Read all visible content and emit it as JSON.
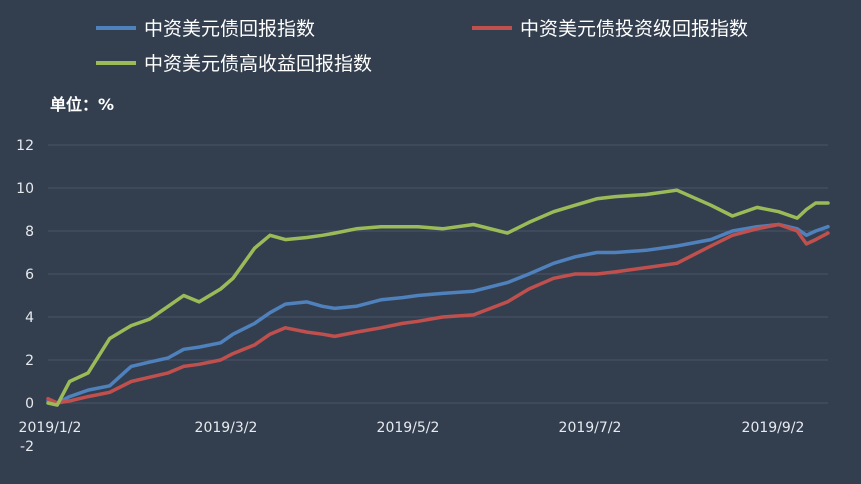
{
  "chart_data": {
    "type": "line",
    "unit_label": "单位：%",
    "y_ticks": [
      "12",
      "10",
      "8",
      "6",
      "4",
      "2",
      "0",
      "-2"
    ],
    "x_ticks": [
      "2019/1/2",
      "2019/3/2",
      "2019/5/2",
      "2019/7/2",
      "2019/9/2"
    ],
    "ylim": [
      -2,
      12
    ],
    "xlim": [
      "2019-01-02",
      "2019-09-12"
    ],
    "grid": true,
    "legend_position": "top",
    "series": [
      {
        "name": "中资美元债回报指数",
        "color": "#4f81bd",
        "x": [
          "2019-01-02",
          "2019-01-05",
          "2019-01-09",
          "2019-01-15",
          "2019-01-22",
          "2019-01-29",
          "2019-02-04",
          "2019-02-10",
          "2019-02-15",
          "2019-02-20",
          "2019-02-27",
          "2019-03-03",
          "2019-03-10",
          "2019-03-15",
          "2019-03-20",
          "2019-03-27",
          "2019-04-01",
          "2019-04-05",
          "2019-04-12",
          "2019-04-20",
          "2019-04-27",
          "2019-05-02",
          "2019-05-10",
          "2019-05-20",
          "2019-05-31",
          "2019-06-07",
          "2019-06-15",
          "2019-06-22",
          "2019-06-29",
          "2019-07-05",
          "2019-07-15",
          "2019-07-25",
          "2019-08-05",
          "2019-08-12",
          "2019-08-20",
          "2019-08-27",
          "2019-09-02",
          "2019-09-05",
          "2019-09-08",
          "2019-09-12"
        ],
        "values": [
          0.1,
          0.0,
          0.3,
          0.6,
          0.8,
          1.7,
          1.9,
          2.1,
          2.5,
          2.6,
          2.8,
          3.2,
          3.7,
          4.2,
          4.6,
          4.7,
          4.5,
          4.4,
          4.5,
          4.8,
          4.9,
          5.0,
          5.1,
          5.2,
          5.6,
          6.0,
          6.5,
          6.8,
          7.0,
          7.0,
          7.1,
          7.3,
          7.6,
          8.0,
          8.2,
          8.3,
          8.1,
          7.8,
          8.0,
          8.2
        ]
      },
      {
        "name": "中资美元债投资级回报指数",
        "color": "#c0504d",
        "x": [
          "2019-01-02",
          "2019-01-05",
          "2019-01-09",
          "2019-01-15",
          "2019-01-22",
          "2019-01-29",
          "2019-02-04",
          "2019-02-10",
          "2019-02-15",
          "2019-02-20",
          "2019-02-27",
          "2019-03-03",
          "2019-03-10",
          "2019-03-15",
          "2019-03-20",
          "2019-03-27",
          "2019-04-01",
          "2019-04-05",
          "2019-04-12",
          "2019-04-20",
          "2019-04-27",
          "2019-05-02",
          "2019-05-10",
          "2019-05-20",
          "2019-05-31",
          "2019-06-07",
          "2019-06-15",
          "2019-06-22",
          "2019-06-29",
          "2019-07-05",
          "2019-07-15",
          "2019-07-25",
          "2019-08-05",
          "2019-08-12",
          "2019-08-20",
          "2019-08-27",
          "2019-09-02",
          "2019-09-05",
          "2019-09-08",
          "2019-09-12"
        ],
        "values": [
          0.2,
          0.0,
          0.1,
          0.3,
          0.5,
          1.0,
          1.2,
          1.4,
          1.7,
          1.8,
          2.0,
          2.3,
          2.7,
          3.2,
          3.5,
          3.3,
          3.2,
          3.1,
          3.3,
          3.5,
          3.7,
          3.8,
          4.0,
          4.1,
          4.7,
          5.3,
          5.8,
          6.0,
          6.0,
          6.1,
          6.3,
          6.5,
          7.3,
          7.8,
          8.1,
          8.3,
          8.0,
          7.4,
          7.6,
          7.9
        ]
      },
      {
        "name": "中资美元债高收益回报指数",
        "color": "#9bbb59",
        "x": [
          "2019-01-02",
          "2019-01-05",
          "2019-01-09",
          "2019-01-15",
          "2019-01-22",
          "2019-01-29",
          "2019-02-04",
          "2019-02-10",
          "2019-02-15",
          "2019-02-20",
          "2019-02-27",
          "2019-03-03",
          "2019-03-10",
          "2019-03-15",
          "2019-03-20",
          "2019-03-27",
          "2019-04-01",
          "2019-04-05",
          "2019-04-12",
          "2019-04-20",
          "2019-04-27",
          "2019-05-02",
          "2019-05-10",
          "2019-05-20",
          "2019-05-31",
          "2019-06-07",
          "2019-06-15",
          "2019-06-22",
          "2019-06-29",
          "2019-07-05",
          "2019-07-15",
          "2019-07-25",
          "2019-08-05",
          "2019-08-12",
          "2019-08-20",
          "2019-08-27",
          "2019-09-02",
          "2019-09-05",
          "2019-09-08",
          "2019-09-12"
        ],
        "values": [
          0.0,
          -0.1,
          1.0,
          1.4,
          3.0,
          3.6,
          3.9,
          4.5,
          5.0,
          4.7,
          5.3,
          5.8,
          7.2,
          7.8,
          7.6,
          7.7,
          7.8,
          7.9,
          8.1,
          8.2,
          8.2,
          8.2,
          8.1,
          8.3,
          7.9,
          8.4,
          8.9,
          9.2,
          9.5,
          9.6,
          9.7,
          9.9,
          9.2,
          8.7,
          9.1,
          8.9,
          8.6,
          9.0,
          9.3,
          9.3
        ]
      }
    ]
  }
}
